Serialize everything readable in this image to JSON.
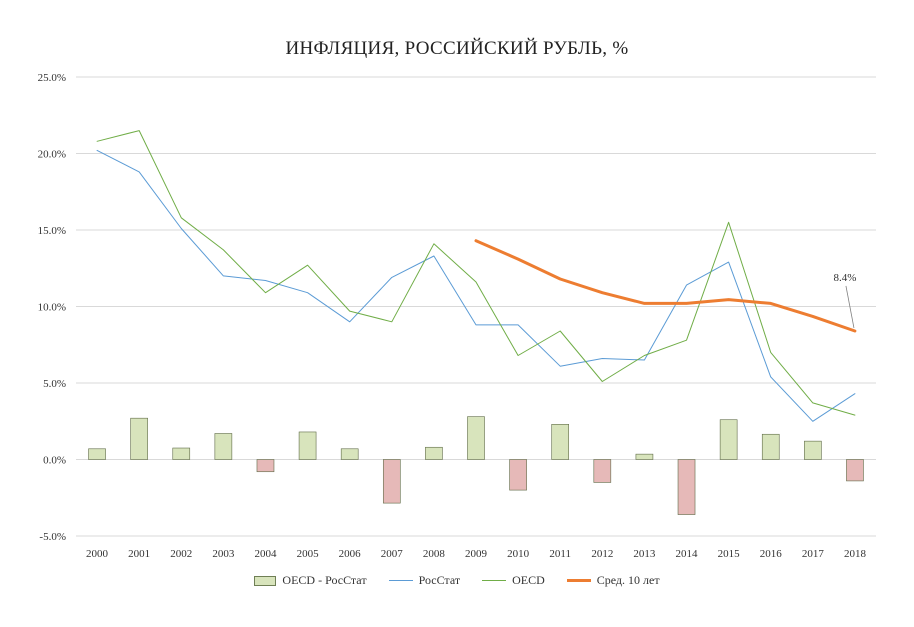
{
  "colors": {
    "bar_positive": "#d8e4bc",
    "bar_negative": "#e6b9b8",
    "bar_border": "#5f6b47",
    "rosstat": "#5b9bd5",
    "oecd": "#70ad47",
    "avg": "#ed7d31",
    "grid": "#d9d9d9"
  },
  "chart_data": {
    "type": "bar+line",
    "title": "ИНФЛЯЦИЯ, РОССИЙСКИЙ РУБЛЬ, %",
    "categories": [
      "2000",
      "2001",
      "2002",
      "2003",
      "2004",
      "2005",
      "2006",
      "2007",
      "2008",
      "2009",
      "2010",
      "2011",
      "2012",
      "2013",
      "2014",
      "2015",
      "2016",
      "2017",
      "2018"
    ],
    "y_ticks": [
      "25.0%",
      "20.0%",
      "15.0%",
      "10.0%",
      "5.0%",
      "0.0%",
      "-5.0%"
    ],
    "ylim": [
      -5,
      25
    ],
    "grid": true,
    "legend_position": "bottom",
    "series": [
      {
        "name": "OECD - РосСтат",
        "kind": "bar",
        "values": [
          0.7,
          2.7,
          0.75,
          1.7,
          -0.8,
          1.8,
          0.7,
          -2.85,
          0.8,
          2.8,
          -2.0,
          2.3,
          -1.5,
          0.35,
          -3.6,
          2.6,
          1.65,
          1.2,
          -1.4
        ]
      },
      {
        "name": "РосСтат",
        "kind": "line",
        "values": [
          20.2,
          18.8,
          15.1,
          12.0,
          11.7,
          10.9,
          9.0,
          11.9,
          13.3,
          8.8,
          8.8,
          6.1,
          6.6,
          6.5,
          11.4,
          12.9,
          5.4,
          2.5,
          4.3
        ]
      },
      {
        "name": "OECD",
        "kind": "line",
        "values": [
          20.8,
          21.5,
          15.8,
          13.7,
          10.9,
          12.7,
          9.7,
          9.0,
          14.1,
          11.6,
          6.8,
          8.4,
          5.1,
          6.8,
          7.8,
          15.5,
          7.0,
          3.7,
          2.9
        ]
      },
      {
        "name": "Сред. 10 лет",
        "kind": "line",
        "values": [
          null,
          null,
          null,
          null,
          null,
          null,
          null,
          null,
          null,
          14.3,
          13.1,
          11.8,
          10.9,
          10.2,
          10.2,
          10.45,
          10.2,
          9.35,
          8.4
        ]
      }
    ],
    "annotations": [
      {
        "text": "8.4%",
        "category": "2018",
        "series": "Сред. 10 лет"
      }
    ]
  }
}
